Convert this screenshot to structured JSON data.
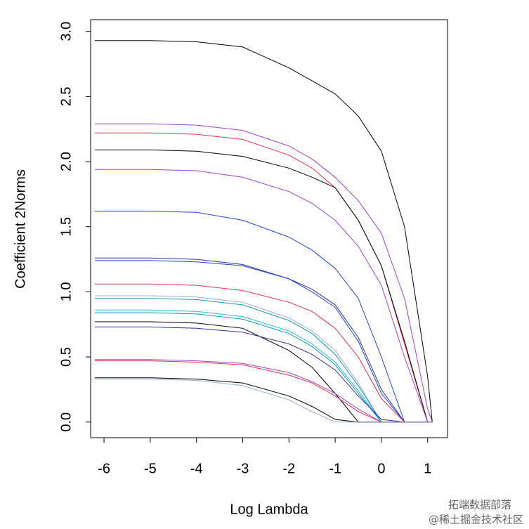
{
  "chart_data": {
    "type": "line",
    "x_label": "Log Lambda",
    "y_label": "Coefficient 2Norms",
    "x": [
      -6.2,
      -5,
      -4,
      -3,
      -2,
      -1.5,
      -1,
      -0.5,
      0,
      0.5,
      1,
      1.1
    ],
    "series": [
      {
        "color": "#000000",
        "values": [
          2.93,
          2.93,
          2.92,
          2.88,
          2.72,
          2.62,
          2.52,
          2.35,
          2.08,
          1.5,
          0.35,
          0
        ]
      },
      {
        "color": "#a040d0",
        "values": [
          2.29,
          2.29,
          2.28,
          2.24,
          2.12,
          2.02,
          1.88,
          1.7,
          1.45,
          0.95,
          0.1,
          0
        ]
      },
      {
        "color": "#dd3355",
        "values": [
          2.22,
          2.22,
          2.21,
          2.17,
          2.05,
          1.95,
          1.8,
          1.55,
          1.2,
          0.6,
          0,
          0
        ]
      },
      {
        "color": "#000000",
        "values": [
          2.09,
          2.09,
          2.08,
          2.04,
          1.95,
          1.88,
          1.8,
          1.55,
          1.2,
          0.62,
          0,
          0
        ]
      },
      {
        "color": "#a040d0",
        "values": [
          1.94,
          1.94,
          1.93,
          1.88,
          1.77,
          1.68,
          1.55,
          1.35,
          1.05,
          0.5,
          0,
          0
        ]
      },
      {
        "color": "#2244cc",
        "values": [
          1.62,
          1.62,
          1.61,
          1.55,
          1.42,
          1.32,
          1.18,
          0.95,
          0.5,
          0,
          0,
          0
        ]
      },
      {
        "color": "#3030a0",
        "values": [
          1.26,
          1.26,
          1.25,
          1.21,
          1.1,
          1.02,
          0.9,
          0.65,
          0.25,
          0,
          0,
          0
        ]
      },
      {
        "color": "#2244cc",
        "values": [
          1.24,
          1.24,
          1.23,
          1.2,
          1.1,
          1.0,
          0.88,
          0.62,
          0.22,
          0,
          0,
          0
        ]
      },
      {
        "color": "#dd3355",
        "values": [
          1.06,
          1.06,
          1.05,
          1.01,
          0.92,
          0.85,
          0.72,
          0.5,
          0.18,
          0,
          0,
          0
        ]
      },
      {
        "color": "#99aadd",
        "values": [
          0.97,
          0.97,
          0.96,
          0.92,
          0.8,
          0.7,
          0.55,
          0.3,
          0,
          0,
          0,
          0
        ]
      },
      {
        "color": "#1199bb",
        "values": [
          0.95,
          0.95,
          0.94,
          0.9,
          0.78,
          0.68,
          0.52,
          0.28,
          0,
          0,
          0,
          0
        ]
      },
      {
        "color": "#22bbee",
        "values": [
          0.86,
          0.86,
          0.85,
          0.81,
          0.7,
          0.6,
          0.46,
          0.24,
          0,
          0,
          0,
          0
        ]
      },
      {
        "color": "#1199bb",
        "values": [
          0.84,
          0.84,
          0.83,
          0.79,
          0.68,
          0.58,
          0.44,
          0.22,
          0,
          0,
          0,
          0
        ]
      },
      {
        "color": "#000000",
        "values": [
          0.77,
          0.77,
          0.76,
          0.72,
          0.55,
          0.42,
          0.22,
          0,
          0,
          0,
          0,
          0
        ]
      },
      {
        "color": "#3030a0",
        "values": [
          0.73,
          0.73,
          0.72,
          0.69,
          0.6,
          0.52,
          0.4,
          0.2,
          0.02,
          0,
          0,
          0
        ]
      },
      {
        "color": "#a040d0",
        "values": [
          0.48,
          0.48,
          0.47,
          0.45,
          0.38,
          0.31,
          0.22,
          0.1,
          0,
          0,
          0,
          0
        ]
      },
      {
        "color": "#dd3355",
        "values": [
          0.47,
          0.47,
          0.46,
          0.44,
          0.36,
          0.3,
          0.2,
          0.08,
          0,
          0,
          0,
          0
        ]
      },
      {
        "color": "#000000",
        "values": [
          0.34,
          0.34,
          0.33,
          0.3,
          0.2,
          0.12,
          0.02,
          0,
          0,
          0,
          0,
          0
        ]
      },
      {
        "color": "#99aadd",
        "values": [
          0.33,
          0.33,
          0.32,
          0.28,
          0.17,
          0.08,
          0,
          0,
          0,
          0,
          0,
          0
        ]
      }
    ],
    "xlim": [
      -6.29,
      1.43
    ],
    "ylim": [
      -0.12,
      3.09
    ],
    "xticks": [
      -6,
      -5,
      -4,
      -3,
      -2,
      -1,
      0,
      1
    ],
    "yticks": [
      {
        "value": 0,
        "label": "0.0"
      },
      0.5,
      {
        "value": 1,
        "label": "1.0"
      },
      1.5,
      {
        "value": 2,
        "label": "2.0"
      },
      2.5,
      {
        "value": 3,
        "label": "3.0"
      }
    ],
    "annotations": [
      "拓端数据部落",
      "@稀土掘金技术社区"
    ]
  }
}
